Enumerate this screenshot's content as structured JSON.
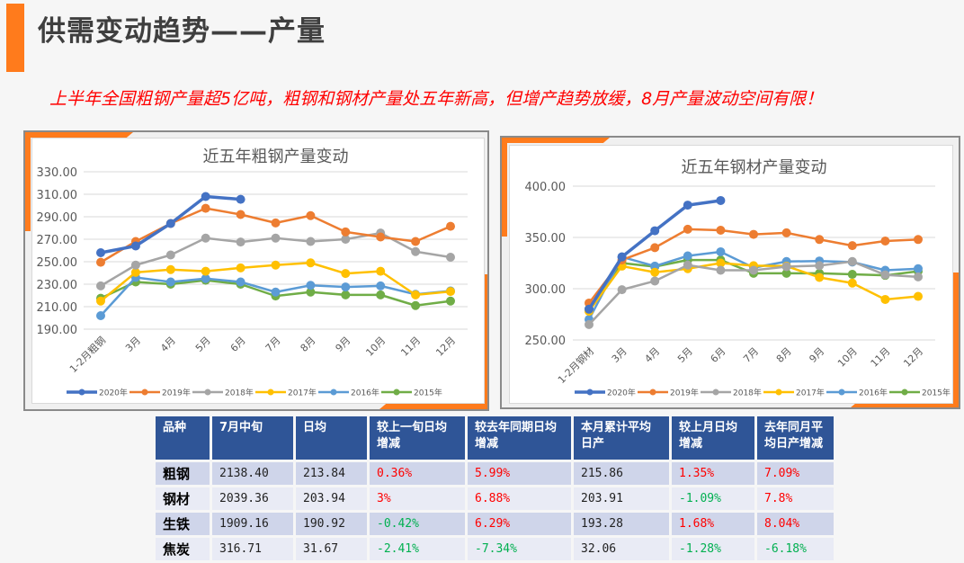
{
  "header": {
    "title": "供需变动趋势——产量",
    "subtitle": "上半年全国粗钢产量超5亿吨，粗钢和钢材产量处五年新高，但增产趋势放缓，8月产量波动空间有限！"
  },
  "colors": {
    "accent": "#ff7b1c",
    "subtitle": "#ff0000",
    "table_header": "#2f5597",
    "positive": "#ff0000",
    "negative": "#00b050"
  },
  "chart_data": [
    {
      "type": "line",
      "title": "近五年粗钢产量变动",
      "categories": [
        "1-2月粗钢",
        "3月",
        "4月",
        "5月",
        "6月",
        "7月",
        "8月",
        "9月",
        "10月",
        "11月",
        "12月"
      ],
      "ylim": [
        190,
        330
      ],
      "yticks": [
        "330.00",
        "310.00",
        "290.00",
        "270.00",
        "250.00",
        "230.00",
        "210.00",
        "190.00"
      ],
      "grid": true,
      "legend": "bottom",
      "series": [
        {
          "name": "2020年",
          "color": "#4472c4",
          "values": [
            258,
            264,
            284,
            308,
            305.5,
            null,
            null,
            null,
            null,
            null,
            null
          ]
        },
        {
          "name": "2019年",
          "color": "#ed7d31",
          "values": [
            249.5,
            268,
            284,
            297.5,
            292,
            284.5,
            291,
            276.5,
            272,
            268,
            281.5
          ]
        },
        {
          "name": "2018年",
          "color": "#a5a5a5",
          "values": [
            228.5,
            247,
            256,
            271,
            267.5,
            271,
            268,
            270,
            275.5,
            259,
            254
          ]
        },
        {
          "name": "2017年",
          "color": "#ffc000",
          "values": [
            215,
            240.5,
            243,
            241.5,
            244.5,
            247,
            249,
            239.5,
            241.5,
            220.5,
            223.5
          ]
        },
        {
          "name": "2016年",
          "color": "#5b9bd5",
          "values": [
            202,
            236,
            232,
            235,
            232,
            223,
            229,
            227.5,
            228.5,
            221,
            224
          ]
        },
        {
          "name": "2015年",
          "color": "#70ad47",
          "values": [
            217.5,
            232,
            230,
            233.5,
            230,
            219.5,
            223,
            220.5,
            220.5,
            211,
            215
          ]
        }
      ]
    },
    {
      "type": "line",
      "title": "近五年钢材产量变动",
      "categories": [
        "1-2月钢材",
        "3月",
        "4月",
        "5月",
        "6月",
        "7月",
        "8月",
        "9月",
        "10月",
        "11月",
        "12月"
      ],
      "ylim": [
        250,
        400
      ],
      "yticks": [
        "400.00",
        "350.00",
        "300.00",
        "250.00"
      ],
      "grid": true,
      "legend": "bottom",
      "series": [
        {
          "name": "2020年",
          "color": "#4472c4",
          "values": [
            280,
            331,
            356.5,
            381.5,
            386,
            null,
            null,
            null,
            null,
            null,
            null
          ]
        },
        {
          "name": "2019年",
          "color": "#ed7d31",
          "values": [
            286,
            328,
            340,
            358,
            357,
            353,
            354.5,
            348,
            342,
            346.5,
            348
          ]
        },
        {
          "name": "2018年",
          "color": "#a5a5a5",
          "values": [
            265,
            299,
            307.5,
            323,
            318,
            318,
            321.5,
            322.5,
            326.5,
            313.5,
            311.5
          ]
        },
        {
          "name": "2017年",
          "color": "#ffc000",
          "values": [
            278,
            322,
            316,
            319.5,
            325,
            322.5,
            322,
            311,
            305.5,
            289.5,
            292.5
          ]
        },
        {
          "name": "2016年",
          "color": "#5b9bd5",
          "values": [
            270,
            331,
            322,
            332,
            336,
            320.5,
            326.5,
            327,
            326,
            318,
            319.5
          ]
        },
        {
          "name": "2015年",
          "color": "#70ad47",
          "values": [
            280,
            325,
            321.5,
            328,
            328,
            315,
            315,
            315,
            314,
            313,
            317
          ]
        }
      ]
    }
  ],
  "table": {
    "headers": [
      "品种",
      "7月中旬",
      "日均",
      "较上一旬日均增减",
      "较去年同期日均增减",
      "本月累计平均日产",
      "较上月日均增减",
      "去年同月平均日产增减"
    ],
    "rows": [
      [
        "粗钢",
        "2138.40",
        "213.84",
        "0.36%",
        "5.99%",
        "215.86",
        "1.35%",
        "7.09%"
      ],
      [
        "钢材",
        "2039.36",
        "203.94",
        "3%",
        "6.88%",
        "203.91",
        "-1.09%",
        "7.8%"
      ],
      [
        "生铁",
        "1909.16",
        "190.92",
        "-0.42%",
        "6.29%",
        "193.28",
        "1.68%",
        "8.04%"
      ],
      [
        "焦炭",
        "316.71",
        "31.67",
        "-2.41%",
        "-7.34%",
        "32.06",
        "-1.28%",
        "-6.18%"
      ]
    ]
  }
}
